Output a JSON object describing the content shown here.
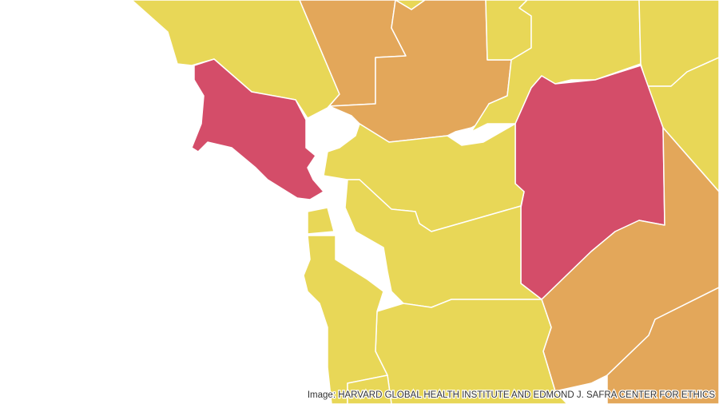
{
  "credit": "Image: HARVARD GLOBAL HEALTH INSTITUTE AND EDMOND J. SAFRA CENTER FOR ETHICS"
}
